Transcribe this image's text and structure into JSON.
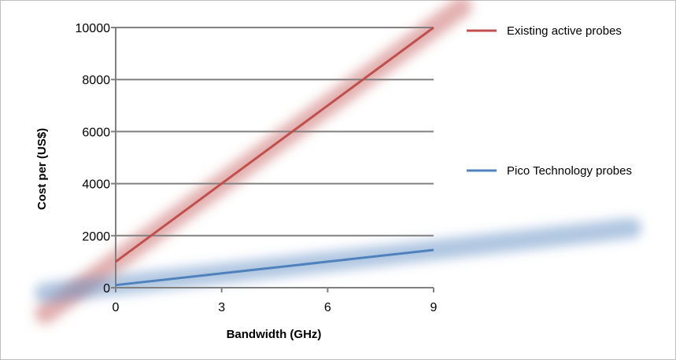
{
  "chart_data": {
    "type": "line",
    "title": "",
    "xlabel": "Bandwidth (GHz)",
    "ylabel": "Cost per (US$)",
    "xlim": [
      0,
      9
    ],
    "ylim": [
      0,
      10000
    ],
    "x_ticks": [
      "0",
      "3",
      "6",
      "9"
    ],
    "y_ticks": [
      "0",
      "2000",
      "4000",
      "6000",
      "8000",
      "10000"
    ],
    "grid": "horizontal",
    "legend_position": "right",
    "x": [
      0,
      3,
      6,
      9
    ],
    "series": [
      {
        "name": "Existing active probes",
        "color": "#c0504d",
        "values": [
          1000,
          4000,
          7000,
          10000
        ]
      },
      {
        "name": "Pico Technology probes",
        "color": "#4f81bd",
        "values": [
          100,
          550,
          1000,
          1450
        ]
      }
    ]
  }
}
